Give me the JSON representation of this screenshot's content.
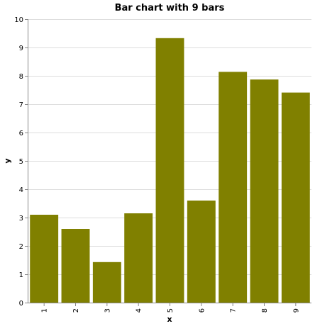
{
  "chart_data": {
    "type": "bar",
    "title": "Bar chart with 9 bars",
    "xlabel": "x",
    "ylabel": "y",
    "categories": [
      "1",
      "2",
      "3",
      "4",
      "5",
      "6",
      "7",
      "8",
      "9"
    ],
    "values": [
      3.1,
      2.6,
      1.43,
      3.15,
      9.33,
      3.6,
      8.14,
      7.87,
      7.41
    ],
    "ylim": [
      0,
      10
    ],
    "yticks": [
      "0",
      "1",
      "2",
      "3",
      "4",
      "5",
      "6",
      "7",
      "8",
      "9",
      "10"
    ],
    "grid": true,
    "bar_color": "#808000"
  }
}
